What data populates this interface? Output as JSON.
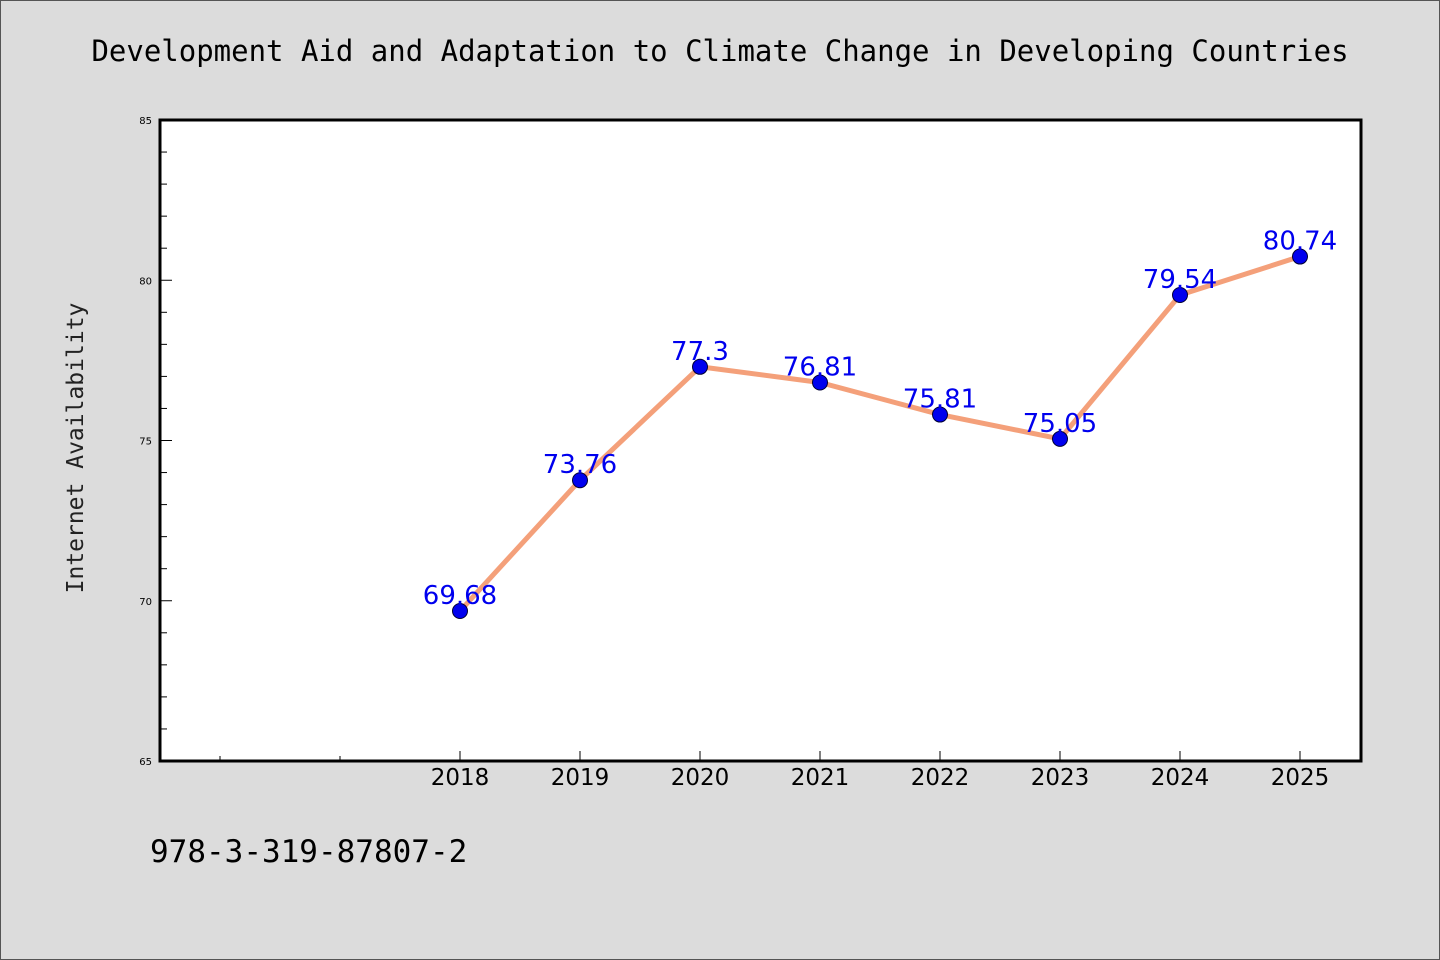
{
  "colors": {
    "background": "#dcdcdc",
    "plot_background": "#ffffff",
    "line": "#f4a07a",
    "marker": "#0000ee",
    "data_label": "#0000ee"
  },
  "footer": {
    "code": "978-3-319-87807-2"
  },
  "chart_data": {
    "type": "line",
    "title": "Development Aid and Adaptation to Climate Change in Developing Countries",
    "ylabel": "Internet Availability",
    "xlabel": "",
    "ylim": [
      65,
      85
    ],
    "y_ticks": [
      65,
      70,
      75,
      80,
      85
    ],
    "x": [
      "2018",
      "2019",
      "2020",
      "2021",
      "2022",
      "2023",
      "2024",
      "2025"
    ],
    "series": [
      {
        "values": [
          69.68,
          73.76,
          77.3,
          76.81,
          75.81,
          75.05,
          79.54,
          80.74
        ],
        "labels": [
          "69.68",
          "73.76",
          "77.3",
          "76.81",
          "75.81",
          "75.05",
          "79.54",
          "80.74"
        ]
      }
    ],
    "grid": false,
    "legend": "none"
  }
}
